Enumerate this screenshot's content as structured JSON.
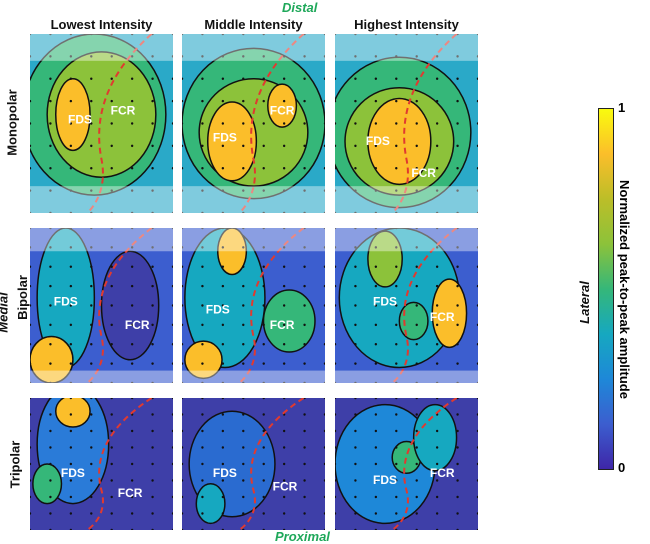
{
  "directions": {
    "top": "Distal",
    "bottom": "Proximal",
    "left": "Medial",
    "right": "Lateral"
  },
  "columns": [
    "Lowest Intensity",
    "Middle Intensity",
    "Highest Intensity"
  ],
  "rows": [
    "Monopolar",
    "Bipolar",
    "Tripolar"
  ],
  "colorbar": {
    "label": "Normalized peak-to-peak amplitude",
    "max_label": "1",
    "min_label": "0",
    "range": [
      0,
      1
    ],
    "colormap": "parula"
  },
  "chart_data": {
    "type": "heatmap",
    "title": "",
    "panels_layout": "3 rows x 3 columns of contour maps",
    "row_labels": [
      "Monopolar",
      "Bipolar",
      "Tripolar"
    ],
    "column_labels": [
      "Lowest Intensity",
      "Middle Intensity",
      "Highest Intensity"
    ],
    "region_labels": [
      "FDS",
      "FCR"
    ],
    "boundary": "red dashed line separating FDS and FCR",
    "zlim": [
      0,
      1
    ],
    "colorbar_ticks": [
      "0",
      "1"
    ]
  }
}
